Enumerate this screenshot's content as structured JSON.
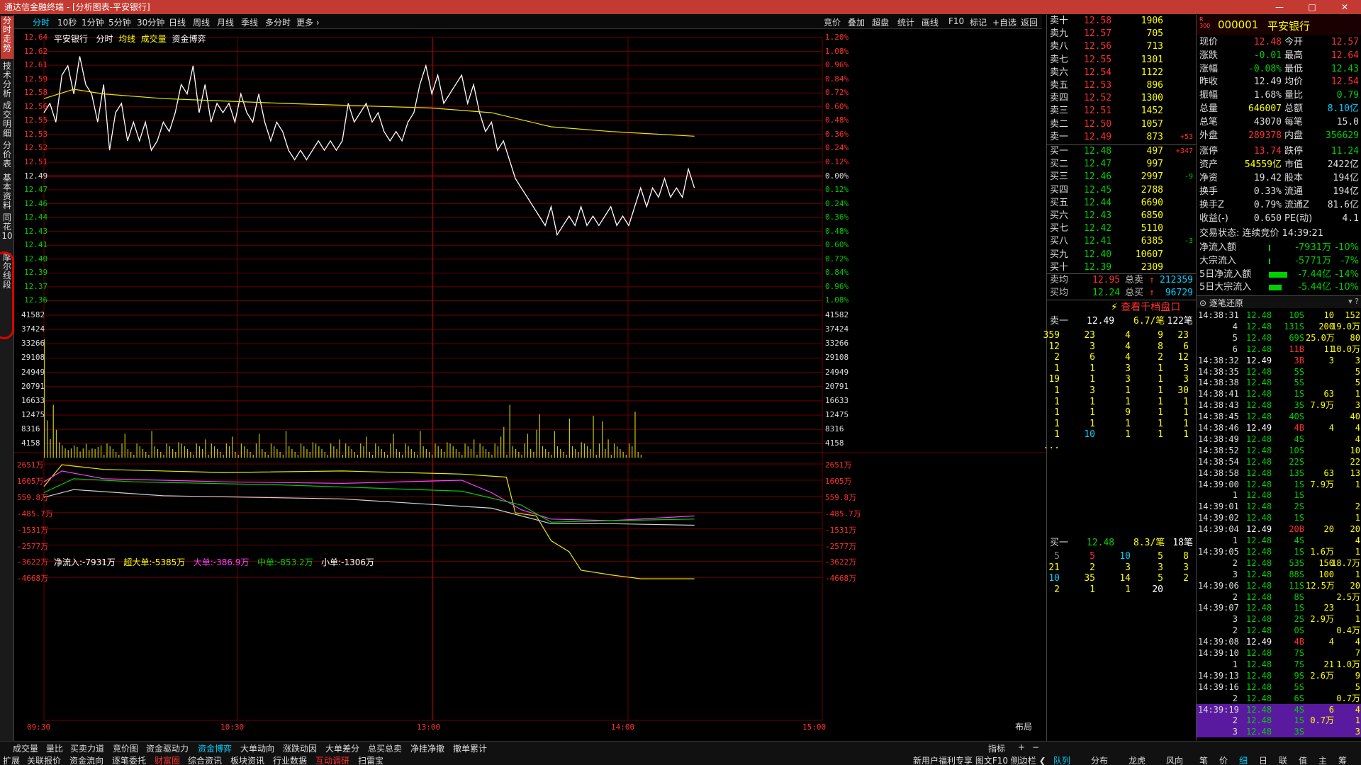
{
  "app": {
    "title": "通达信金融终端 - [分析图表-平安银行]",
    "win_controls": [
      "—",
      "□",
      "✕"
    ]
  },
  "left_tabs": [
    {
      "label": "分时走势"
    },
    {
      "label": "技术分析"
    },
    {
      "label": "成交明细"
    },
    {
      "label": "分价表"
    },
    {
      "label": "基本资料"
    },
    {
      "label": "同花10"
    },
    {
      "label": "摩尔线段"
    }
  ],
  "toolbar": {
    "periods": [
      "分时",
      "10秒",
      "1分钟",
      "5分钟",
      "30分钟",
      "日线",
      "周线",
      "月线",
      "季线",
      "多分时",
      "更多 ›"
    ],
    "tools": [
      "竞价",
      "叠加",
      "超盘",
      "统计",
      "画线",
      "F10",
      "标记",
      "+自选",
      "返回"
    ]
  },
  "chart": {
    "header": {
      "name": "平安银行",
      "mode": "分时",
      "avg_label": "均线",
      "vol_label": "成交量",
      "fund_label": "资金博弈"
    },
    "price_axis": [
      "12.64",
      "12.62",
      "12.61",
      "12.59",
      "12.58",
      "12.56",
      "12.55",
      "12.53",
      "12.52",
      "12.51",
      "12.49",
      "12.47",
      "12.46",
      "12.44",
      "12.43",
      "12.41",
      "12.40",
      "12.39",
      "12.37",
      "12.36"
    ],
    "pct_axis": [
      "1.20%",
      "1.08%",
      "0.96%",
      "0.84%",
      "0.72%",
      "0.60%",
      "0.48%",
      "0.36%",
      "0.24%",
      "0.12%",
      "0.00%",
      "0.12%",
      "0.24%",
      "0.36%",
      "0.48%",
      "0.60%",
      "0.72%",
      "0.84%",
      "0.96%",
      "1.08%"
    ],
    "vol_axis": [
      "41582",
      "37424",
      "33266",
      "29108",
      "24949",
      "20791",
      "16633",
      "12475",
      "8316",
      "4158"
    ],
    "flow_header": {
      "net": "净流入:-7931万",
      "super": "超大单:-5385万",
      "big": "大单:-386.9万",
      "mid": "中单:-853.2万",
      "small": "小单:-1306万"
    },
    "flow_axis": [
      "2651万",
      "1605万",
      "559.8万",
      "-485.7万",
      "-1531万",
      "-2577万",
      "-3622万",
      "-4668万"
    ],
    "time_axis": [
      "09:30",
      "10:30",
      "13:00",
      "14:00",
      "15:00"
    ],
    "layout_label": "布局",
    "colors": {
      "price": "#ffffff",
      "avg": "#e8e800",
      "vol": "#c8c800",
      "grid": "#6a0000",
      "super": "#e8e800",
      "big": "#ff40ff",
      "mid": "#00d000",
      "small": "#d0d0d0"
    }
  },
  "bottom_tabs": {
    "row1": [
      "成交量",
      "量比",
      "买卖力道",
      "竞价图",
      "资金驱动力",
      "资金博弈",
      "大单动向",
      "涨跌动因",
      "大单差分",
      "总买总卖",
      "净挂净撤",
      "撤单累计"
    ],
    "row1_right": [
      "指标",
      "+",
      "−"
    ],
    "row2": [
      "扩展",
      "关联报价",
      "资金流向",
      "逐笔委托",
      "财富圈",
      "综合资讯",
      "板块资讯",
      "行业数据",
      "互动调研",
      "扫雷宝"
    ],
    "row2_right": "新用户福利专享  图文F10  侧边栏 ❮"
  },
  "orderbook": {
    "asks": [
      [
        "卖十",
        "12.58",
        "1906"
      ],
      [
        "卖九",
        "12.57",
        "705"
      ],
      [
        "卖八",
        "12.56",
        "713"
      ],
      [
        "卖七",
        "12.55",
        "1301"
      ],
      [
        "卖六",
        "12.54",
        "1122"
      ],
      [
        "卖五",
        "12.53",
        "896"
      ],
      [
        "卖四",
        "12.52",
        "1300"
      ],
      [
        "卖三",
        "12.51",
        "1452"
      ],
      [
        "卖二",
        "12.50",
        "1057"
      ],
      [
        "卖一",
        "12.49",
        "873",
        "+53"
      ]
    ],
    "bids": [
      [
        "买一",
        "12.48",
        "497",
        "+347"
      ],
      [
        "买二",
        "12.47",
        "997",
        ""
      ],
      [
        "买三",
        "12.46",
        "2997",
        "-9"
      ],
      [
        "买四",
        "12.45",
        "2788",
        ""
      ],
      [
        "买五",
        "12.44",
        "6690",
        ""
      ],
      [
        "买六",
        "12.43",
        "6850",
        ""
      ],
      [
        "买七",
        "12.42",
        "5110",
        ""
      ],
      [
        "买八",
        "12.41",
        "6385",
        "-3"
      ],
      [
        "买九",
        "12.40",
        "10607",
        ""
      ],
      [
        "买十",
        "12.39",
        "2309",
        ""
      ]
    ],
    "avg_ask": [
      "卖均",
      "12.95",
      "总卖",
      "212359"
    ],
    "avg_bid": [
      "买均",
      "12.24",
      "总买",
      "96729"
    ]
  },
  "quote": {
    "code": "000001",
    "name": "平安银行",
    "rows": [
      [
        "现价",
        "12.48",
        "今开",
        "12.57"
      ],
      [
        "涨跌",
        "-0.01",
        "最高",
        "12.64"
      ],
      [
        "涨幅",
        "-0.08%",
        "最低",
        "12.43"
      ],
      [
        "昨收",
        "12.49",
        "均价",
        "12.54"
      ],
      [
        "振幅",
        "1.68%",
        "量比",
        "0.79"
      ],
      [
        "总量",
        "646007",
        "总额",
        "8.10亿"
      ],
      [
        "总笔",
        "43070",
        "每笔",
        "15.0"
      ],
      [
        "外盘",
        "289378",
        "内盘",
        "356629"
      ]
    ],
    "rows2": [
      [
        "涨停",
        "13.74",
        "跌停",
        "11.24"
      ],
      [
        "资产",
        "54559亿",
        "市值",
        "2422亿"
      ],
      [
        "净资",
        "19.42",
        "股本",
        "194亿"
      ],
      [
        "换手",
        "0.33%",
        "流通",
        "194亿"
      ],
      [
        "换手Z",
        "0.79%",
        "流通Z",
        "81.6亿"
      ],
      [
        "收益(-)",
        "0.650",
        "PE(动)",
        "4.1"
      ]
    ],
    "status": "交易状态: 连续竞价 14:39:21",
    "flows": [
      [
        "净流入额",
        "-7931万",
        "-10%"
      ],
      [
        "大宗流入",
        "-5771万",
        "-7%"
      ],
      [
        "5日净流入额",
        "-7.44亿",
        "-14%"
      ],
      [
        "5日大宗流入",
        "-5.44亿",
        "-10%"
      ]
    ]
  },
  "queue": {
    "link": "查看千档盘口",
    "ask_head": [
      "卖一",
      "12.49",
      "6.7/笔",
      "122笔"
    ],
    "ask_rows": [
      [
        "359",
        "23",
        "4",
        "9",
        "23"
      ],
      [
        "12",
        "3",
        "4",
        "8",
        "6"
      ],
      [
        "2",
        "6",
        "4",
        "2",
        "12"
      ],
      [
        "1",
        "1",
        "3",
        "1",
        "3"
      ],
      [
        "19",
        "1",
        "3",
        "1",
        "3"
      ],
      [
        "1",
        "3",
        "1",
        "1",
        "30"
      ],
      [
        "1",
        "1",
        "1",
        "1",
        "1"
      ],
      [
        "1",
        "1",
        "9",
        "1",
        "1"
      ],
      [
        "1",
        "1",
        "1",
        "1",
        "1"
      ],
      [
        "1",
        "10",
        "1",
        "1",
        "1"
      ],
      [
        "...",
        "",
        "",
        "",
        ""
      ]
    ],
    "bid_head": [
      "买一",
      "12.48",
      "8.3/笔",
      "18笔"
    ],
    "bid_rows": [
      [
        "5",
        "5",
        "10",
        "5",
        "8"
      ],
      [
        "21",
        "2",
        "3",
        "3",
        "3"
      ],
      [
        "10",
        "35",
        "14",
        "5",
        "2"
      ],
      [
        "2",
        "1",
        "1",
        "20",
        ""
      ]
    ]
  },
  "ticks": {
    "title": "逐笔还原",
    "rows": [
      [
        "14:38:31",
        "12.48",
        "10S",
        "10",
        "152"
      ],
      [
        "4",
        "12.48",
        "131S",
        "200",
        "19.0万"
      ],
      [
        "5",
        "12.48",
        "69S",
        "25.0万",
        "80"
      ],
      [
        "6",
        "12.48",
        "11B",
        "11",
        "10.0万"
      ],
      [
        "14:38:32",
        "12.49",
        "3B",
        "3",
        "3"
      ],
      [
        "14:38:35",
        "12.48",
        "5S",
        "",
        "5"
      ],
      [
        "14:38:38",
        "12.48",
        "5S",
        "",
        "5"
      ],
      [
        "14:38:41",
        "12.48",
        "1S",
        "63",
        "1"
      ],
      [
        "14:38:43",
        "12.48",
        "3S",
        "7.9万",
        "3"
      ],
      [
        "14:38:45",
        "12.48",
        "40S",
        "",
        "40"
      ],
      [
        "14:38:46",
        "12.49",
        "4B",
        "4",
        "4"
      ],
      [
        "14:38:49",
        "12.48",
        "4S",
        "",
        "4"
      ],
      [
        "14:38:52",
        "12.48",
        "10S",
        "",
        "10"
      ],
      [
        "14:38:54",
        "12.48",
        "22S",
        "",
        "22"
      ],
      [
        "14:38:58",
        "12.48",
        "13S",
        "63",
        "13"
      ],
      [
        "14:39:00",
        "12.48",
        "1S",
        "7.9万",
        "1"
      ],
      [
        "1",
        "12.48",
        "1S",
        "",
        ""
      ],
      [
        "14:39:01",
        "12.48",
        "2S",
        "",
        "2"
      ],
      [
        "14:39:02",
        "12.48",
        "1S",
        "",
        "1"
      ],
      [
        "14:39:04",
        "12.49",
        "20B",
        "20",
        "20"
      ],
      [
        "1",
        "12.48",
        "4S",
        "",
        "4"
      ],
      [
        "14:39:05",
        "12.48",
        "1S",
        "1.6万",
        "1"
      ],
      [
        "2",
        "12.48",
        "53S",
        "150",
        "18.7万"
      ],
      [
        "3",
        "12.48",
        "88S",
        "100",
        "1"
      ],
      [
        "14:39:06",
        "12.48",
        "11S",
        "12.5万",
        "20"
      ],
      [
        "2",
        "12.48",
        "8S",
        "",
        "2.5万"
      ],
      [
        "14:39:07",
        "12.48",
        "1S",
        "23",
        "1"
      ],
      [
        "3",
        "12.48",
        "2S",
        "2.9万",
        "1"
      ],
      [
        "2",
        "12.48",
        "0S",
        "",
        "0.4万"
      ],
      [
        "14:39:08",
        "12.49",
        "4B",
        "4",
        "4"
      ],
      [
        "14:39:10",
        "12.48",
        "7S",
        "",
        "7"
      ],
      [
        "1",
        "12.48",
        "7S",
        "21",
        "1.0万"
      ],
      [
        "14:39:13",
        "12.48",
        "9S",
        "2.6万",
        "9"
      ],
      [
        "14:39:16",
        "12.48",
        "5S",
        "",
        "5"
      ],
      [
        "2",
        "12.48",
        "6S",
        "",
        "0.7万"
      ],
      [
        "14:39:19",
        "12.48",
        "4S",
        "6",
        "4"
      ],
      [
        "2",
        "12.48",
        "1S",
        "0.7万",
        "1"
      ],
      [
        "3",
        "12.48",
        "3S",
        "",
        "3"
      ]
    ]
  },
  "right_bottom_tabs": [
    "队列",
    "分布",
    "龙虎",
    "风向"
  ],
  "far_right_tabs": [
    "笔",
    "价",
    "细",
    "日",
    "联",
    "值",
    "主",
    "筹"
  ]
}
